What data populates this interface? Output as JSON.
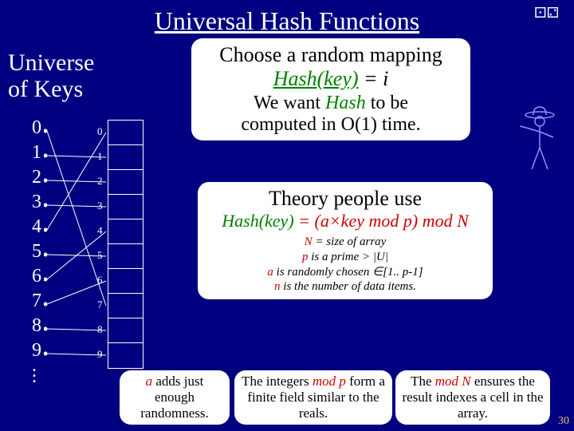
{
  "title": "Universal Hash Functions",
  "universe_label_l1": "Universe",
  "universe_label_l2": "of Keys",
  "keys": [
    "0",
    "1",
    "2",
    "3",
    "4",
    "5",
    "6",
    "7",
    "8",
    "9"
  ],
  "array": {
    "cell_count": 10,
    "indices": [
      "0",
      "1",
      "2",
      "3",
      "4",
      "5",
      "6",
      "7",
      "8",
      "9"
    ],
    "border_color": "#ffffff",
    "bg": "#000080"
  },
  "mapping_edges": [
    {
      "from": 0,
      "to": 7
    },
    {
      "from": 1,
      "to": 1
    },
    {
      "from": 2,
      "to": 2
    },
    {
      "from": 3,
      "to": 3
    },
    {
      "from": 4,
      "to": 0
    },
    {
      "from": 5,
      "to": 5
    },
    {
      "from": 6,
      "to": 4
    },
    {
      "from": 7,
      "to": 6
    },
    {
      "from": 8,
      "to": 8
    },
    {
      "from": 9,
      "to": 9
    }
  ],
  "bubble1": {
    "l1": "Choose a random mapping",
    "hash_word": "Hash(key)",
    "eq_i": " = i",
    "l3a": "We want ",
    "l3_hash": "Hash",
    "l3b": " to be",
    "l4": "computed in O(1) time."
  },
  "bubble2": {
    "t1": "Theory people use",
    "formula_hash": "Hash(key)",
    "formula_mid": " = (a×key mod p) mod N",
    "s1a": "N",
    "s1b": " = size of array",
    "s2a": "p",
    "s2b": " is a prime > |U|",
    "s3a": "a",
    "s3b": " is randomly chosen ∈[1.. p-1]",
    "s4a": "n",
    "s4b": " is the number of data items."
  },
  "bubble3": {
    "a": "a",
    "rest": " adds just enough randomness."
  },
  "bubble4": {
    "pre": "The integers ",
    "modp": "mod p",
    "rest": " form a finite field similar to the reals."
  },
  "bubble5": {
    "pre": "The ",
    "modn": "mod N",
    "rest": " ensures the result indexes a cell in the array."
  },
  "colors": {
    "bg": "#000080",
    "text": "#ffffff",
    "green": "#008000",
    "red": "#cc0000",
    "bubble_bg": "#ffffff",
    "page_num": "#e0c060"
  },
  "page_num": "30"
}
